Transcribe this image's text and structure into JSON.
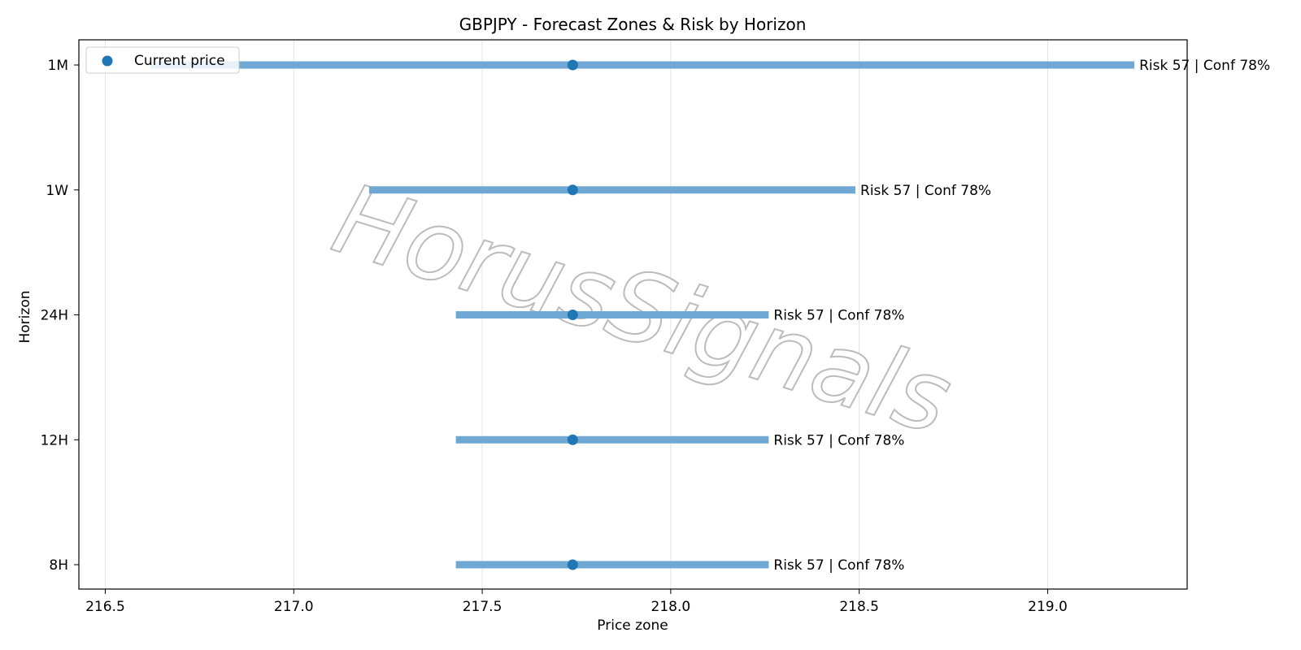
{
  "chart_data": {
    "type": "range-dot",
    "title": "GBPJPY - Forecast Zones & Risk by Horizon",
    "xlabel": "Price zone",
    "ylabel": "Horizon",
    "xlim": [
      216.43,
      219.37
    ],
    "xticks": [
      "216.5",
      "217.0",
      "217.5",
      "218.0",
      "218.5",
      "219.0"
    ],
    "xtick_values": [
      216.5,
      217.0,
      217.5,
      218.0,
      218.5,
      219.0
    ],
    "grid": "vertical",
    "legend": {
      "placement": "top-left",
      "entries": [
        "Current price"
      ]
    },
    "current_price": 217.74,
    "horizons": [
      {
        "label": "1M",
        "low": 216.62,
        "high": 219.23,
        "annotation": "Risk 57 | Conf 78%"
      },
      {
        "label": "1W",
        "low": 217.2,
        "high": 218.49,
        "annotation": "Risk 57 | Conf 78%"
      },
      {
        "label": "24H",
        "low": 217.43,
        "high": 218.26,
        "annotation": "Risk 57 | Conf 78%"
      },
      {
        "label": "12H",
        "low": 217.43,
        "high": 218.26,
        "annotation": "Risk 57 | Conf 78%"
      },
      {
        "label": "8H",
        "low": 217.43,
        "high": 218.26,
        "annotation": "Risk 57 | Conf 78%"
      }
    ],
    "colors": {
      "zone": "#6fa8d2",
      "dot": "#1f77b4",
      "grid": "#e3e3e3",
      "watermark": "#bcbcbc"
    }
  },
  "watermark": "HorusSignals"
}
